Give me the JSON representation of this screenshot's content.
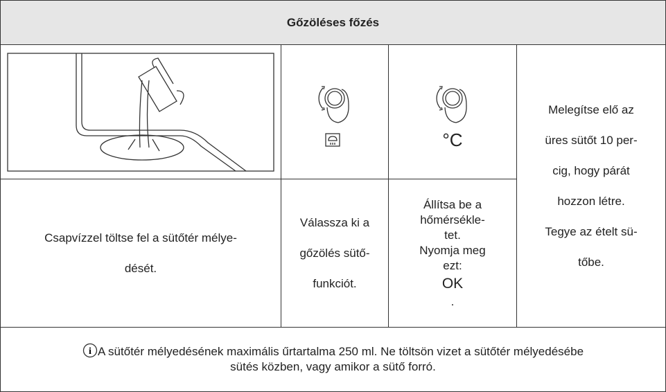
{
  "header": {
    "title": "Gőzöléses főzés"
  },
  "steps": [
    {
      "text": [
        "Csapvízzel töltse fel a sütőtér mélye-",
        "dését."
      ]
    },
    {
      "text": [
        "Válassza ki a",
        "gőzölés sütő-",
        "funkciót."
      ]
    },
    {
      "symbol": "°C",
      "text": [
        "Állítsa be a",
        "hőmérsékle-",
        "tet.",
        "Nyomja meg",
        "ezt:"
      ],
      "button": "OK",
      "after": "."
    },
    {
      "text": [
        "Melegítse elő az",
        "üres sütőt 10 per-",
        "cig, hogy párát",
        "hozzon létre.",
        "Tegye az ételt sü-",
        "tőbe."
      ]
    }
  ],
  "note": {
    "text": [
      "A sütőtér mélyedésének maximális űrtartalma 250 ml. Ne töltsön vizet a sütőtér mélyedésébe",
      "sütés közben, vagy amikor a sütő forró."
    ]
  }
}
